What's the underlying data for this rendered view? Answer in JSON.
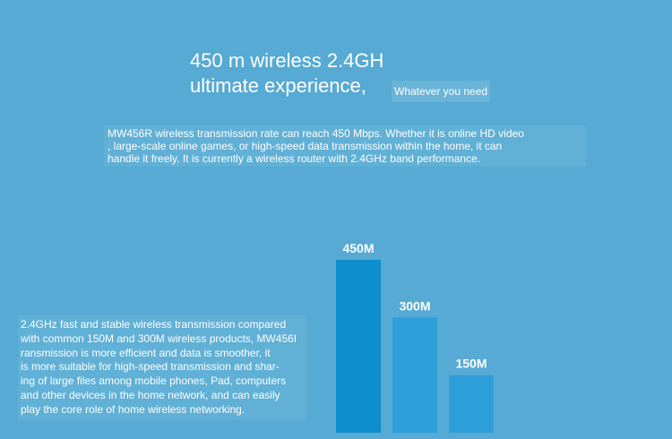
{
  "headline": [
    "450 m wireless 2.4GH",
    "ultimate experience,"
  ],
  "tagline": "Whatever you need",
  "intro": [
    "MW456R wireless transmission rate can reach 450 Mbps. Whether it is online HD video",
    ", large-scale online games, or high-speed data transmission within the home, it can",
    "handle it freely. It is currently a wireless router with 2.4GHz band performance."
  ],
  "body": [
    "2.4GHz fast and stable wireless transmission compared",
    "with common 150M and 300M wireless products, MW456I",
    "ransmission is more efficient and data is smoother, it",
    "is more suitable for high-speed transmission and shar-",
    "ing of large files among mobile phones, Pad, computers",
    "and other devices in the home network, and can easily",
    "play the core role of home wireless networking."
  ],
  "chart_data": {
    "type": "bar",
    "categories": [
      null,
      null,
      null
    ],
    "values": [
      450,
      300,
      150
    ],
    "value_labels": [
      "450M",
      "300M",
      "150M"
    ],
    "colors": [
      "#0b8ecb",
      "#2d9fd8",
      "#2d9fd8"
    ]
  }
}
